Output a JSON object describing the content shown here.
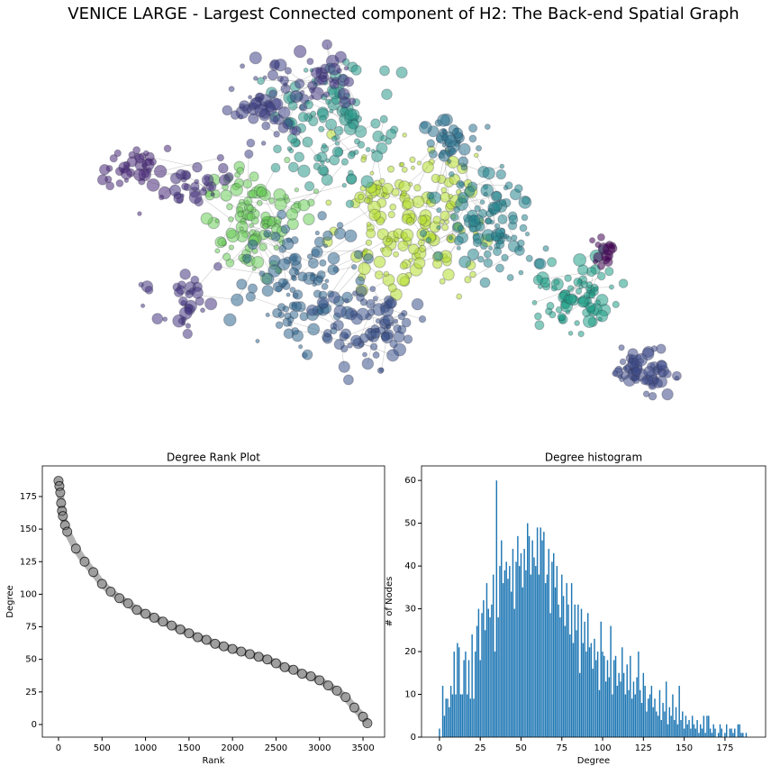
{
  "title": "VENICE LARGE - Largest Connected component of H2: The Back-end Spatial Graph",
  "chart_data": [
    {
      "type": "scatter",
      "title": "Degree Rank Plot",
      "x_label": "Rank",
      "y_label": "Degree",
      "color": "#808080",
      "x": [
        0,
        10,
        20,
        30,
        40,
        50,
        75,
        100,
        200,
        300,
        400,
        500,
        600,
        700,
        800,
        900,
        1000,
        1100,
        1200,
        1300,
        1400,
        1500,
        1600,
        1700,
        1800,
        1900,
        2000,
        2100,
        2200,
        2300,
        2400,
        2500,
        2600,
        2700,
        2800,
        2900,
        3000,
        3100,
        3200,
        3300,
        3400,
        3500,
        3550
      ],
      "values": [
        187,
        183,
        178,
        170,
        164,
        160,
        153,
        148,
        135,
        125,
        117,
        108,
        102,
        97,
        93,
        88,
        85,
        82,
        79,
        76,
        73,
        70,
        67,
        65,
        62,
        60,
        58,
        56,
        54,
        52,
        50,
        47,
        44,
        42,
        39,
        37,
        34,
        30,
        26,
        21,
        13,
        6,
        1
      ],
      "xlim": [
        -186,
        3748
      ],
      "xticks": [
        0,
        500,
        1000,
        1500,
        2000,
        2500,
        3000,
        3500
      ],
      "ylim": [
        -9.7,
        198.5
      ],
      "yticks": [
        0,
        25,
        50,
        75,
        100,
        125,
        150,
        175
      ]
    },
    {
      "type": "bar",
      "title": "Degree histogram",
      "x_label": "Degree",
      "y_label": "# of Nodes",
      "color": "#1f77b4",
      "x": [
        0,
        1,
        2,
        3,
        4,
        5,
        6,
        7,
        8,
        9,
        10,
        11,
        12,
        13,
        14,
        15,
        16,
        17,
        18,
        19,
        20,
        21,
        22,
        23,
        24,
        25,
        26,
        27,
        28,
        29,
        30,
        31,
        32,
        33,
        34,
        35,
        36,
        37,
        38,
        39,
        40,
        41,
        42,
        43,
        44,
        45,
        46,
        47,
        48,
        49,
        50,
        51,
        52,
        53,
        54,
        55,
        56,
        57,
        58,
        59,
        60,
        61,
        62,
        63,
        64,
        65,
        66,
        67,
        68,
        69,
        70,
        71,
        72,
        73,
        74,
        75,
        76,
        77,
        78,
        79,
        80,
        81,
        82,
        83,
        84,
        85,
        86,
        87,
        88,
        89,
        90,
        91,
        92,
        93,
        94,
        95,
        96,
        97,
        98,
        99,
        100,
        101,
        102,
        103,
        104,
        105,
        106,
        107,
        108,
        109,
        110,
        111,
        112,
        113,
        114,
        115,
        116,
        117,
        118,
        119,
        120,
        121,
        122,
        123,
        124,
        125,
        126,
        127,
        128,
        129,
        130,
        131,
        132,
        133,
        134,
        135,
        136,
        137,
        138,
        139,
        140,
        141,
        142,
        143,
        144,
        145,
        146,
        147,
        148,
        149,
        150,
        151,
        152,
        153,
        154,
        155,
        156,
        157,
        158,
        159,
        160,
        161,
        162,
        163,
        164,
        165,
        166,
        167,
        168,
        169,
        170,
        171,
        172,
        173,
        174,
        175,
        176,
        177,
        178,
        179,
        180,
        181,
        182,
        183,
        184,
        185,
        186,
        187,
        188
      ],
      "values": [
        2,
        0,
        12,
        5,
        9,
        9,
        7,
        12,
        10,
        20,
        10,
        22,
        21,
        10,
        10,
        18,
        20,
        10,
        18,
        9,
        24,
        9,
        20,
        26,
        30,
        18,
        29,
        32,
        25,
        36,
        30,
        28,
        31,
        38,
        20,
        60,
        28,
        40,
        46,
        36,
        39,
        41,
        37,
        40,
        34,
        44,
        30,
        41,
        47,
        40,
        43,
        35,
        44,
        39,
        50,
        47,
        38,
        46,
        42,
        40,
        49,
        38,
        49,
        46,
        48,
        36,
        38,
        44,
        29,
        41,
        43,
        35,
        40,
        31,
        28,
        38,
        33,
        26,
        36,
        31,
        24,
        36,
        22,
        31,
        25,
        31,
        15,
        30,
        22,
        27,
        20,
        29,
        21,
        22,
        16,
        23,
        18,
        20,
        11,
        27,
        20,
        19,
        13,
        18,
        14,
        26,
        10,
        18,
        19,
        12,
        15,
        13,
        21,
        15,
        10,
        17,
        11,
        19,
        9,
        13,
        10,
        14,
        20,
        11,
        8,
        15,
        12,
        6,
        9,
        10,
        12,
        7,
        9,
        6,
        5,
        11,
        4,
        8,
        6,
        13,
        3,
        7,
        5,
        10,
        4,
        7,
        3,
        12,
        4,
        6,
        2,
        5,
        3,
        4,
        2,
        5,
        3,
        2,
        4,
        1,
        3,
        2,
        5,
        1,
        5,
        5,
        2,
        1,
        3,
        2,
        0,
        1,
        3,
        2,
        0,
        1,
        3,
        0,
        2,
        2,
        1,
        2,
        0,
        3,
        3,
        1,
        1,
        0,
        1
      ],
      "xlim": [
        -11,
        199.9
      ],
      "xticks": [
        0,
        25,
        50,
        75,
        100,
        125,
        150,
        175
      ],
      "ylim": [
        0,
        63.4
      ],
      "yticks": [
        0,
        10,
        20,
        30,
        40,
        50,
        60
      ]
    }
  ]
}
